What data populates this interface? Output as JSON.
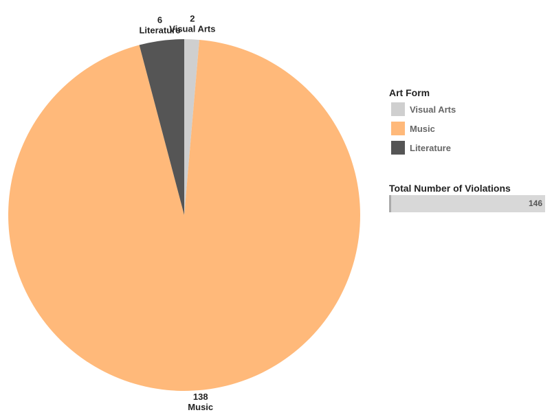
{
  "chart_data": {
    "type": "pie",
    "slices": [
      {
        "label": "Visual Arts",
        "value": 2,
        "color": "#cfcfcf"
      },
      {
        "label": "Music",
        "value": 138,
        "color": "#ffb97a"
      },
      {
        "label": "Literature",
        "value": 6,
        "color": "#555555"
      }
    ],
    "legend_title": "Art Form",
    "legend_placement": "right"
  },
  "total": {
    "title": "Total Number of Violations",
    "value": 146
  }
}
